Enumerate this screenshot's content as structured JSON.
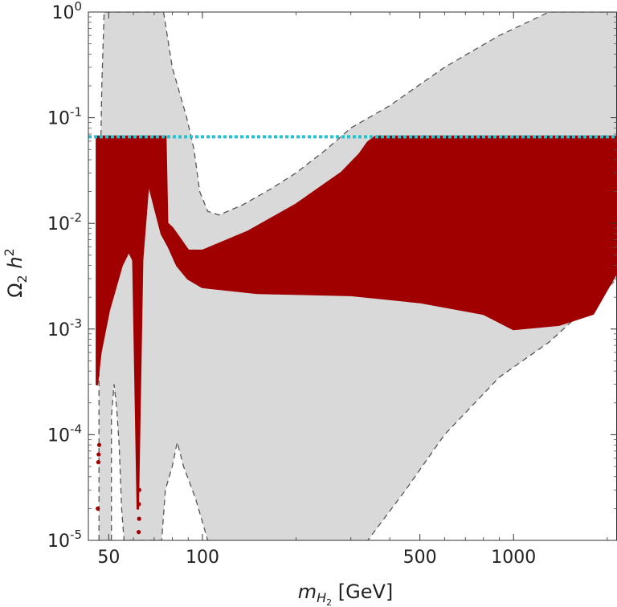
{
  "chart_data": {
    "type": "scatter",
    "title": "",
    "xlabel": {
      "main": "m",
      "sub": "H",
      "subsub": "2",
      "unit": " [GeV]"
    },
    "ylabel": {
      "main": "Ω",
      "sub": "2",
      "rest": " h",
      "sup": "2"
    },
    "x_scale": "log",
    "y_scale": "log",
    "xlim": [
      43,
      2150
    ],
    "ylim": [
      1e-05,
      1
    ],
    "x_ticks": [
      {
        "value": 50,
        "label": "50"
      },
      {
        "value": 100,
        "label": "100"
      },
      {
        "value": 500,
        "label": "500"
      },
      {
        "value": 1000,
        "label": "1000"
      }
    ],
    "y_ticks": [
      {
        "value": 1e-05,
        "base": "10",
        "exp": "-5"
      },
      {
        "value": 0.0001,
        "base": "10",
        "exp": "-4"
      },
      {
        "value": 0.001,
        "base": "10",
        "exp": "-3"
      },
      {
        "value": 0.01,
        "base": "10",
        "exp": "-2"
      },
      {
        "value": 0.1,
        "base": "10",
        "exp": "-1"
      },
      {
        "value": 1,
        "base": "10",
        "exp": "0"
      }
    ],
    "reference_line": {
      "value": 0.066,
      "style": "dotted",
      "color": "#22c4d0"
    },
    "colors": {
      "allowed_region": "#d9d9d9",
      "region_boundary": "#555555",
      "points": "#a00000",
      "background": "#ffffff"
    },
    "series": [
      {
        "kind": "gray-region-outer-boundary",
        "points": [
          [
            46.5,
            1e-05
          ],
          [
            46.5,
            0.005
          ],
          [
            47.5,
            0.2
          ],
          [
            48.3,
            1
          ],
          [
            75,
            1
          ],
          [
            80,
            0.3
          ],
          [
            89,
            0.1
          ],
          [
            94,
            0.05
          ],
          [
            98,
            0.02
          ],
          [
            104,
            0.013
          ],
          [
            113,
            0.012
          ],
          [
            135,
            0.015
          ],
          [
            165,
            0.021
          ],
          [
            200,
            0.03
          ],
          [
            250,
            0.05
          ],
          [
            300,
            0.08
          ],
          [
            400,
            0.13
          ],
          [
            600,
            0.3
          ],
          [
            900,
            0.6
          ],
          [
            1300,
            1
          ],
          [
            2150,
            1
          ],
          [
            2150,
            0.003
          ],
          [
            1800,
            0.0018
          ],
          [
            1300,
            0.00075
          ],
          [
            900,
            0.00035
          ],
          [
            600,
            0.0001
          ],
          [
            450,
            3e-05
          ],
          [
            340,
            1e-05
          ]
        ]
      },
      {
        "kind": "gray-region-inner-boundary",
        "points": [
          [
            51,
            1e-05
          ],
          [
            51,
            0.00015
          ],
          [
            52,
            0.0003
          ],
          [
            53,
            0.00018
          ],
          [
            54,
            8e-05
          ],
          [
            55,
            2e-05
          ],
          [
            56,
            1e-05
          ],
          [
            74,
            1e-05
          ],
          [
            76,
            3e-05
          ],
          [
            80,
            5e-05
          ],
          [
            83,
            8.5e-05
          ],
          [
            87,
            5e-05
          ],
          [
            95,
            2.5e-05
          ],
          [
            104,
            1e-05
          ]
        ]
      },
      {
        "kind": "dark-red-scan-band-upper",
        "points": [
          [
            45.8,
            0.066
          ],
          [
            76,
            0.066
          ],
          [
            77,
            0.01
          ],
          [
            80,
            0.009
          ],
          [
            85,
            0.007
          ],
          [
            90,
            0.0055
          ],
          [
            100,
            0.0055
          ],
          [
            140,
            0.0083
          ],
          [
            200,
            0.015
          ],
          [
            280,
            0.03
          ],
          [
            320,
            0.045
          ],
          [
            340,
            0.058
          ],
          [
            360,
            0.066
          ],
          [
            2150,
            0.066
          ]
        ]
      },
      {
        "kind": "dark-red-scan-band-lower",
        "points": [
          [
            45.8,
            0.0003
          ],
          [
            47,
            0.0006
          ],
          [
            50,
            0.0015
          ],
          [
            55,
            0.004
          ],
          [
            58,
            0.0055
          ],
          [
            60,
            0.0045
          ],
          [
            62,
            2e-05
          ],
          [
            64,
            0.0045
          ],
          [
            67,
            0.025
          ],
          [
            70,
            0.015
          ],
          [
            74,
            0.008
          ],
          [
            78,
            0.006
          ],
          [
            83,
            0.004
          ],
          [
            90,
            0.003
          ],
          [
            100,
            0.0025
          ],
          [
            150,
            0.0022
          ],
          [
            300,
            0.0021
          ],
          [
            500,
            0.0018
          ],
          [
            800,
            0.0014
          ],
          [
            1000,
            0.001
          ],
          [
            1400,
            0.0011
          ],
          [
            1800,
            0.0014
          ],
          [
            2150,
            0.0035
          ]
        ]
      },
      {
        "kind": "isolated-points",
        "points": [
          [
            46.1,
            2e-05
          ],
          [
            46.3,
            5.5e-05
          ],
          [
            46.4,
            6.5e-05
          ],
          [
            46.6,
            8e-05
          ],
          [
            62.4,
            1.2e-05
          ],
          [
            62.6,
            1.6e-05
          ],
          [
            62.5,
            2.2e-05
          ],
          [
            62.7,
            3e-05
          ]
        ]
      }
    ]
  }
}
